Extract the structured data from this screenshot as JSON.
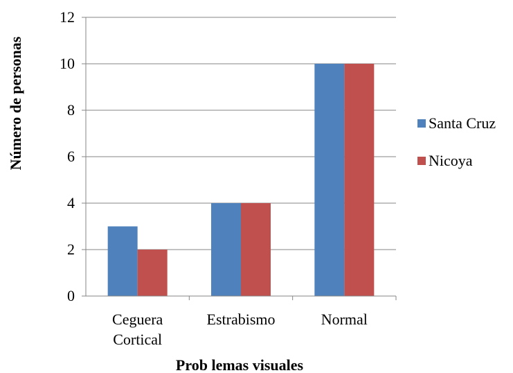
{
  "chart_data": {
    "type": "bar",
    "categories": [
      [
        "Ceguera",
        "Cortical"
      ],
      [
        "Estrabismo"
      ],
      [
        "Normal"
      ]
    ],
    "series": [
      {
        "name": "Santa Cruz",
        "values": [
          3,
          4,
          10
        ],
        "color": "#4F81BD"
      },
      {
        "name": "Nicoya",
        "values": [
          2,
          4,
          10
        ],
        "color": "#C0504D"
      }
    ],
    "title": "",
    "xlabel": "Prob lemas visuales",
    "ylabel": "Número de personas",
    "ylim": [
      0,
      12
    ],
    "yticks": [
      0,
      2,
      4,
      6,
      8,
      10,
      12
    ],
    "grid": true,
    "legend": "right",
    "colors": {
      "grid": "#868686",
      "axis": "#868686"
    }
  }
}
